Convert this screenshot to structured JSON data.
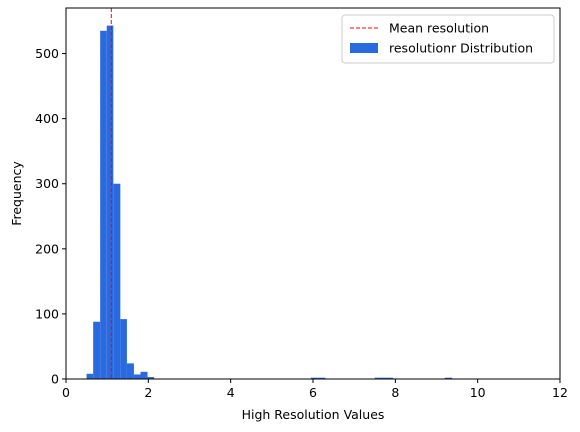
{
  "chart_data": {
    "type": "bar",
    "subtype": "histogram",
    "title": "",
    "xlabel": "High Resolution Values",
    "ylabel": "Frequency",
    "xlim": [
      0,
      12
    ],
    "ylim": [
      0,
      570
    ],
    "xticks": [
      0,
      2,
      4,
      6,
      8,
      10,
      12
    ],
    "yticks": [
      0,
      100,
      200,
      300,
      400,
      500
    ],
    "grid": false,
    "legend_position": "top-right",
    "bar_color": "#2a6ae0",
    "mean_line": {
      "label": "Mean resolution",
      "x": 1.1,
      "color": "#ff0000",
      "style": "dashed"
    },
    "series": [
      {
        "name": "resolutionr Distribution",
        "bins": [
          {
            "x0": 0.5,
            "x1": 0.66,
            "count": 8
          },
          {
            "x0": 0.66,
            "x1": 0.83,
            "count": 88
          },
          {
            "x0": 0.83,
            "x1": 0.99,
            "count": 535
          },
          {
            "x0": 0.99,
            "x1": 1.15,
            "count": 543
          },
          {
            "x0": 1.15,
            "x1": 1.32,
            "count": 300
          },
          {
            "x0": 1.32,
            "x1": 1.48,
            "count": 92
          },
          {
            "x0": 1.48,
            "x1": 1.65,
            "count": 24
          },
          {
            "x0": 1.65,
            "x1": 1.81,
            "count": 7
          },
          {
            "x0": 1.81,
            "x1": 1.98,
            "count": 11
          },
          {
            "x0": 1.98,
            "x1": 2.14,
            "count": 3
          },
          {
            "x0": 5.95,
            "x1": 6.3,
            "count": 2
          },
          {
            "x0": 7.5,
            "x1": 7.95,
            "count": 2
          },
          {
            "x0": 9.2,
            "x1": 9.38,
            "count": 2
          }
        ]
      }
    ]
  }
}
